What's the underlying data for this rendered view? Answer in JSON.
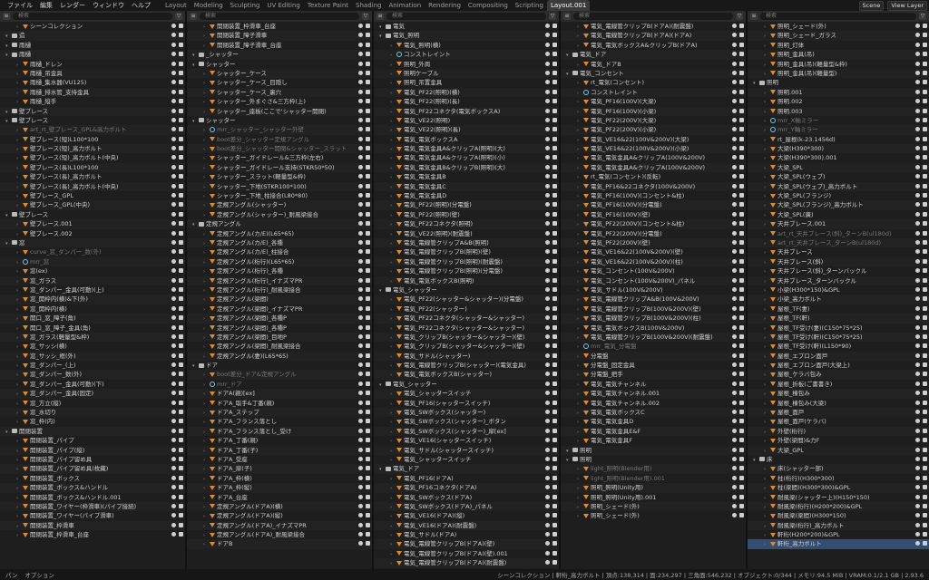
{
  "menu": [
    "ファイル",
    "編集",
    "レンダー",
    "ウィンドウ",
    "ヘルプ"
  ],
  "workspaces": [
    "Layout",
    "Modeling",
    "Sculpting",
    "UV Editing",
    "Texture Paint",
    "Shading",
    "Animation",
    "Rendering",
    "Compositing",
    "Scripting",
    "Layout.001"
  ],
  "active_workspace": "Layout.001",
  "scene": "Scene",
  "view_layer": "View Layer",
  "search_placeholder": "検索",
  "columns": [
    {
      "header_root": "View Layer",
      "rows": [
        "シーンコレクション",
        "造",
        "雨樋",
        "雨樋",
        "雨樋_ドレン",
        "雨樋_吊金具",
        "雨樋_集水器(VU125)",
        "雨樋_排水管_支持金具",
        "雨樋_縦手",
        "壁ブレース",
        "壁ブレース",
        "art_rt_壁ブレース_GPL&高力ボルト",
        "壁ブレース(短)L100*100",
        "壁ブレース(短)_高力ボルト",
        "壁ブレース(短)_高力ボルト(中央)",
        "壁ブレース(長)L100*100",
        "壁ブレース(長)_高力ボルト",
        "壁ブレース(長)_高力ボルト(中央)",
        "壁ブレース_GPL",
        "壁ブレース_GPL(中央)",
        "壁ブレース",
        "壁ブレース.001",
        "壁ブレース.002",
        "窓",
        "curve_窓_ダンパー_数(外)",
        "mrr_窓",
        "窓(ex)",
        "窓_ガラス",
        "窓_ダンパー_金具(可動)(上)",
        "窓_開枠内(横)&下(外)",
        "窓_開枠内(横)",
        "開口_窓_障子(角)",
        "開口_窓_障子_金具(角)",
        "窓_ガラス(軽量型&枠)",
        "窓_サッシ(横)",
        "窓_サッシ_框(外)",
        "窓_ダンパー_(上)",
        "窓_ダンパー_数(外)",
        "窓_ダンパー_金具(可動)(下)",
        "窓_ダンパー_金具(固定)",
        "窓_方立(縦)",
        "窓_水切り",
        "窓_枠(内)",
        "開閉装置",
        "開閉装置_パイプ",
        "開閉装置_パイプ(縦)",
        "開閉装置_パイプ留め具",
        "開閉装置_パイプ留め具(枚藏)",
        "開閉装置_ボックス",
        "開閉装置_ボックス&ハンドル",
        "開閉装置_ボックス&ハンドル.001",
        "開閉装置_ワイヤー(枠滑車)(パイプ接続)",
        "開閉装置_ワイヤー(パイプ滑車)",
        "開閉装置_枠滑車",
        "開閉装置_枠滑車_台座"
      ]
    },
    {
      "header_root": "",
      "rows": [
        "開閉装置_枠滑車_台座",
        "開閉装置_障子滑車",
        "開閉装置_障子滑車_台座",
        "_シャッター",
        "シャッター",
        "シャッター_ケース",
        "シャッター_ケース_目隠し",
        "シャッター_ケース_裏穴",
        "シャッター_外まぐさ&三方枠(上)",
        "シャッター_座板(ここで'シャッター開閉)",
        "シャッター",
        "mrr_シャッター_シャッター外壁",
        "boot差分_シャッター定規アングル",
        "boot差分_シャッター開閉&シャッター_スラット",
        "シャッター_ガイドレール&三方枠(左右)",
        "シャッター_ガイドレール支持(STKR50*50)",
        "シャッター_スラット(軽量型&枠)",
        "シャッター_下地(STKR100*100)",
        "シャッター_下地_柱接合(L80*80)",
        "定規アングル(シャッター)",
        "定規アングル(シャッター)_耐風梁接合",
        "定規アングル",
        "定規アングル(カ/E)(L65*65)",
        "定規アングル(カ/E)_各種",
        "定規アングル(カ/E)_柱接合",
        "定規アングル(桁行)(L65*65)",
        "定規アングル(桁行)_各種",
        "定規アングル(桁行)_イナズマPR",
        "定規アングル(桁行)_耐風梁接合",
        "定規アングル(梁間)",
        "定規アングル(梁間)_イナズマPR",
        "定規アングル(梁間)_各種P",
        "定規アングル(梁間)_各種P",
        "定規アングル(梁間)_目地P",
        "定規アングル(梁間)_耐風梁接合",
        "定規アングル(妻)(L65*65)",
        "ドア",
        "boot差分_ドア&定規アングル",
        "mrr_ドア",
        "ドアA(親)[ex]",
        "ドアA_取手&丁番(親)",
        "ドアA_ステップ",
        "ドアA_フランス落とし",
        "ドアA_フランス落とし_受け",
        "ドアA_丁番(親)",
        "ドアA_丁番(子)",
        "ドアA_受座",
        "ドアA_扉(子)",
        "ドアA_枠(横)",
        "ドアA_枠(縦)",
        "ドアA_台座",
        "定規アングル(ドアA)(横)",
        "定規アングル(ドアA)(縦)",
        "定規アングル(ドアA)_イナズマPR",
        "定規アングル(ドアA)_耐風梁接合",
        "ドアB"
      ]
    },
    {
      "header_root": "",
      "rows": [
        "電気",
        "電気_照明",
        "電気_照明(横)",
        "コンストレイント",
        "照明_外周",
        "照明ケーブル",
        "照明_吊置金具",
        "電気_PF22(照明)(横)",
        "電気_PF22(照明)(長)",
        "電気_PF22コネクタ(電気ボックスA)",
        "電気_VE22(照明)",
        "電気_VE22(照明)(長)",
        "電気_電気ボックスA",
        "電気_電気金具A&クリップA(照明)(大)",
        "電気_電気金具A&クリップA(照明)(小)",
        "電気_電気金具B&クリップB(照明)(大)",
        "電気_電気金具B",
        "電気_電気金具C",
        "電気_電気金具D",
        "電気_PF22(照明)(分電盤)",
        "電気_PF22(照明)(壁)",
        "電気_PF22コネクタ(照明)",
        "電気_VE22(照明)(耐震盤)",
        "電気_電線管クリップA&B(照明)",
        "電気_電線管クリップB(照明)(壁)",
        "電気_電線管クリップB(照明)(耐震盤)",
        "電気_電線管クリップB(照明)(分電盤)",
        "電気_電気ボックスB(照明)",
        "電気_シャッター",
        "電気_PF22(シャッター&シャッター)(分電盤)",
        "電気_PF22(シャッター)",
        "電気_PF22コネクタ(シャッター&シャッター)",
        "電気_PF22コネクタ(シャッター&シャッター)",
        "電気_クリップB(シャッター&シャッター)(壁)",
        "電気_クリップB(シャッター&シャッター)(壁)",
        "電気_サドル(シャッター)",
        "電気_電線管クリップB(シャッター)(電気金具)",
        "電気_電気ボックスB(シャッター)",
        "電気_シャッター",
        "電気_シャッタースイッチ",
        "電気_PF16(シャッタースイッチ)",
        "電気_SWボックス(シャッター)",
        "電気_SWボックス(シャッター)_ボタン",
        "電気_SWボックス(シャッター)_扉[ex]",
        "電気_VE16(シャッタースイッチ)",
        "電気_サドル(シャッタースイッチ)",
        "電気_シャッタースイッチ",
        "電気_ドア",
        "電気_PF16(ドアA)",
        "電気_PF16コネクタ(ドアA)",
        "電気_SWボックス(ドアA)",
        "電気_SWボックス(ドアA)_パネル",
        "電気_VE16(ドアA)(縦)",
        "電気_VE16(ドアA)(耐震盤)",
        "電気_サドル(ドアA)",
        "電気_電線管クリップB(ドアA)(壁)",
        "電気_電線管クリップB(ドアA)(壁).001",
        "電気_電線管クリップB(ドアA)(耐震盤)"
      ]
    },
    {
      "header_root": "",
      "rows": [
        "電気_電線管クリップB(ドアA)(耐震盤)",
        "電気_電線管クリップB(ドアA)(ドアA)",
        "電気_電気ボックスA&クリップB(ドアA)",
        "電気_ドア",
        "電気_ドアB",
        "電気_コンセント",
        "rt_電気(コンセント)",
        "コンストレイント",
        "電気_PF16(100V)(大梁)",
        "電気_PF16(100V)(小梁)",
        "電気_PF22(200V)(大梁)",
        "電気_PF22(200V)(小梁)",
        "電気_VE16&22(100V&200V)(大梁)",
        "電気_VE16&22(100V&200V)(小梁)",
        "電気_電気金具A&クリップA(100V&200V)",
        "電気_電気金具A&クリップA(100V&200V)",
        "rt_電気(コンセント)(反転)",
        "電気_PF16&22コネクタ(100V&200V)",
        "電気_PF16(100V)(コンセント&柱)",
        "電気_PF16(100V)(分電盤)",
        "電気_PF16(100V)(壁)",
        "電気_PF22(200V)(コンセント&柱)",
        "電気_PF22(200V)(分電盤)",
        "電気_PF22(200V)(壁)",
        "電気_VE16&22(100V&200V)(壁)",
        "電気_VE16&22(100V&200V)(柱)",
        "電気_コンセント(100V&200V)",
        "電気_コンセント(100V&200V)_パネル",
        "電気_サドル(100V&200V)",
        "電気_電線管クリップA&B(100V&200V)",
        "電気_電線管クリップB(100V&200V)(壁)",
        "電気_電線管クリップB(100V&200V)(柱)",
        "電気_電気ボックスB(100V&200V)",
        "電気_電線管クリップB(100V&200V)(耐震盤)",
        "mrr_電気_分電盤",
        "分電盤",
        "分電盤_固定金具",
        "分電盤_把手",
        "電気_電気チャンネル",
        "電気_電気チャンネル.001",
        "電気_電気チャンネル.002",
        "電気_電気ボックスC",
        "電気_電気金具D",
        "電気_電気金具E&F",
        "電気_電気金具F",
        "照明",
        "照明",
        "light_照明(Blender用)",
        "light_照明(Blender用).001",
        "照明_照明(Unity用)",
        "照明_照明(Unity用).001",
        "照明_シェード(外)",
        "照明_シェード(外)"
      ]
    },
    {
      "header_root": "Scene",
      "rows": [
        "照明_シェード(外)",
        "照明_シェード_ガラス",
        "照明_灯体",
        "照明_金具(吊)",
        "照明_金具(吊)(軽量型&枠)",
        "照明_金具(吊)(軽量型)",
        "照明",
        "照明.001",
        "照明.002",
        "照明.003",
        "mrr_X軸ミラー",
        "mrr_Y軸ミラー",
        "rt_屋根(k-23.1456d)",
        "大梁(H390*300)",
        "大梁(H390*300).001",
        "大梁_SPL",
        "大梁_SPL(ウェブ)",
        "大梁_SPL(ウェブ)_高力ボルト",
        "大梁_SPL(フランジ)",
        "大梁_SPL(フランジ)_高力ボルト",
        "大梁_SPL(廣)",
        "天井ブレース.001",
        "art_rt_天井ブレース(斜)_ターンB(ul180d)",
        "art_rt_天井ブレース_ターンB(ul180d)",
        "天井ブレース",
        "天井ブレース(斜)",
        "天井ブレース(斜)_ターンバックル",
        "天井ブレース_ターンバックル",
        "小梁(H300*150)&GPL",
        "小梁_高力ボルト",
        "屋根_TF(妻)",
        "屋根_TF(軒)",
        "屋根_TF受け(妻)(C150*75*25)",
        "屋根_TF受け(軒)(C150*75*25)",
        "屋根_TF受け(軒)(L150*90)",
        "屋根_エプロン面戸",
        "屋根_エプロン面戸(大梁上)",
        "屋根_ケラバ包み",
        "屋根_折板(ご書書き)",
        "屋根_棟包み",
        "屋根_棟包み(大梁)",
        "屋根_面戸",
        "屋根_面戸(ケラバ)",
        "外壁(桁行)",
        "外壁(梁間)&力F",
        "大梁_GPL",
        "床",
        "床(シャッター部)",
        "柱(桁行)(H300*300)",
        "柱(梁間)(H300*300)&GPL",
        "耐風梁(シャッター上)(H150*150)",
        "耐風梁(桁行)(H200*200)&GPL",
        "耐風梁(梁間)(H300*150)",
        "耐風梁(桁行)_高力ボルト",
        "軒桁(H200*200)&GPL",
        "軒桁_高力ボルト"
      ]
    }
  ],
  "status": {
    "left": [
      "パン",
      "オプション"
    ],
    "right": "シーンコレクション | 軒桁_高力ボルト | 頂点:138,314 | 面:234,297 | 三角面:546,232 | オブジェクト:0/344 | メモリ:94.5 MiB | VRAM:0.1/2.1 GB | 2.93.6"
  },
  "colors": {
    "accent": "#e08a2c",
    "selection": "#334d73",
    "panel_bg": "#1e1e1e"
  }
}
